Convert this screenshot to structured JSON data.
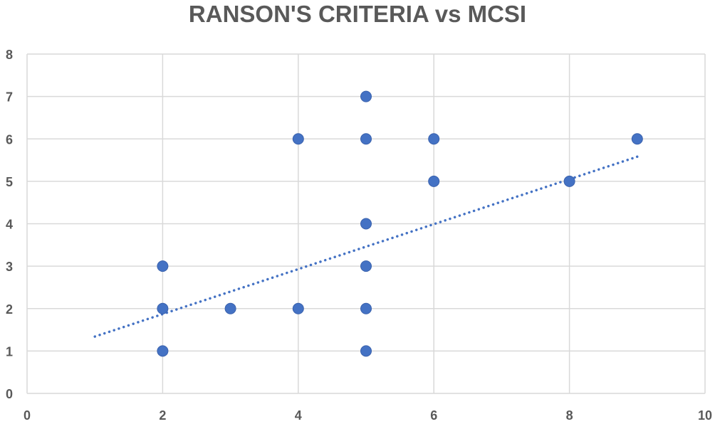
{
  "chart_data": {
    "type": "scatter",
    "title": "RANSON'S CRITERIA vs MCSI",
    "xlabel": "",
    "ylabel": "",
    "xlim": [
      0,
      10
    ],
    "ylim": [
      0,
      8
    ],
    "x_ticks": [
      0,
      2,
      4,
      6,
      8,
      10
    ],
    "y_ticks": [
      0,
      1,
      2,
      3,
      4,
      5,
      6,
      7,
      8
    ],
    "grid": true,
    "legend": "none",
    "series": [
      {
        "points": [
          {
            "x": 2,
            "y": 3
          },
          {
            "x": 2,
            "y": 2
          },
          {
            "x": 2,
            "y": 1
          },
          {
            "x": 3,
            "y": 2
          },
          {
            "x": 4,
            "y": 6
          },
          {
            "x": 4,
            "y": 2
          },
          {
            "x": 5,
            "y": 7
          },
          {
            "x": 5,
            "y": 6
          },
          {
            "x": 5,
            "y": 4
          },
          {
            "x": 5,
            "y": 3
          },
          {
            "x": 5,
            "y": 2
          },
          {
            "x": 5,
            "y": 1
          },
          {
            "x": 6,
            "y": 6
          },
          {
            "x": 6,
            "y": 5
          },
          {
            "x": 8,
            "y": 5
          },
          {
            "x": 9,
            "y": 6
          }
        ]
      }
    ],
    "trendline": {
      "type": "linear",
      "style": "dotted",
      "x": [
        1,
        9
      ],
      "y": [
        1.34,
        5.58
      ]
    },
    "colors": {
      "marker": "#4472C4",
      "trendline": "#4472C4",
      "grid": "#D9D9D9",
      "text": "#595959"
    }
  }
}
